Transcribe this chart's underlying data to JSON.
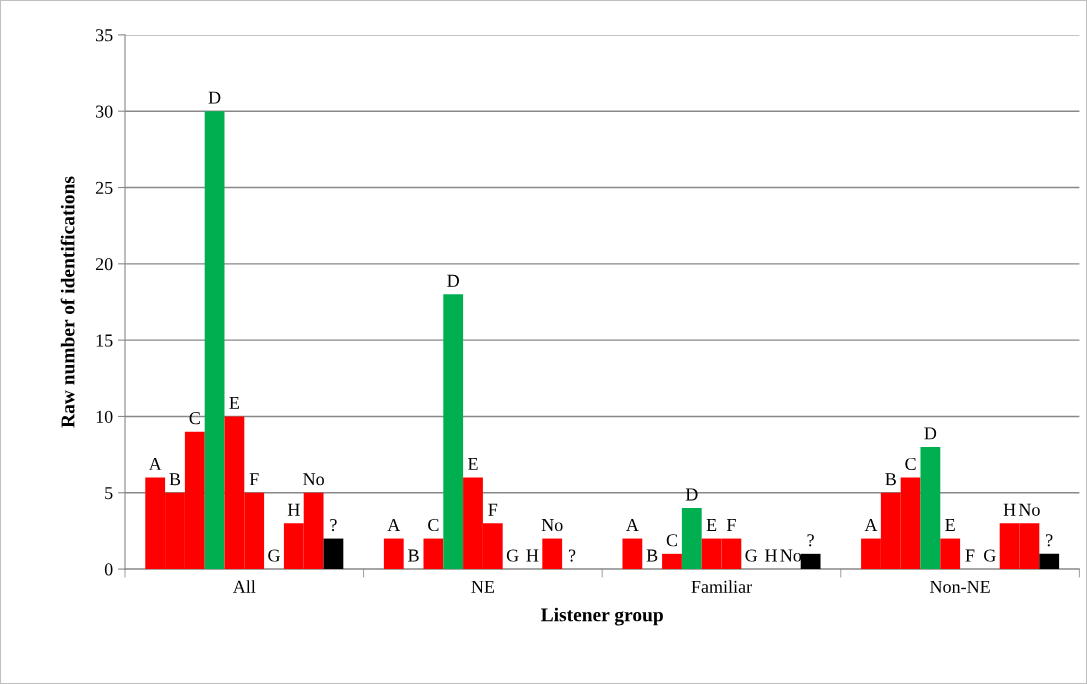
{
  "chart_data": {
    "type": "bar",
    "xlabel": "Listener group",
    "ylabel": "Raw number of identifications",
    "categories": [
      "All",
      "NE",
      "Familiar",
      "Non-NE"
    ],
    "series": [
      {
        "name": "A",
        "color": "#ff0000",
        "values": [
          6,
          2,
          2,
          2
        ]
      },
      {
        "name": "B",
        "color": "#ff0000",
        "values": [
          5,
          0,
          0,
          5
        ]
      },
      {
        "name": "C",
        "color": "#ff0000",
        "values": [
          9,
          2,
          1,
          6
        ]
      },
      {
        "name": "D",
        "color": "#00b050",
        "values": [
          30,
          18,
          4,
          8
        ]
      },
      {
        "name": "E",
        "color": "#ff0000",
        "values": [
          10,
          6,
          2,
          2
        ]
      },
      {
        "name": "F",
        "color": "#ff0000",
        "values": [
          5,
          3,
          2,
          0
        ]
      },
      {
        "name": "G",
        "values": [
          0,
          0,
          0,
          0
        ]
      },
      {
        "name": "H",
        "color": "#ff0000",
        "values": [
          3,
          0,
          0,
          3
        ]
      },
      {
        "name": "No",
        "color": "#ff0000",
        "values": [
          5,
          2,
          0,
          3
        ]
      },
      {
        "name": "?",
        "color": "#000000",
        "values": [
          2,
          0,
          1,
          1
        ]
      }
    ],
    "ylim": [
      0,
      35
    ],
    "yticks": [
      0,
      5,
      10,
      15,
      20,
      25,
      30,
      35
    ],
    "grid": "y",
    "legend": false
  }
}
